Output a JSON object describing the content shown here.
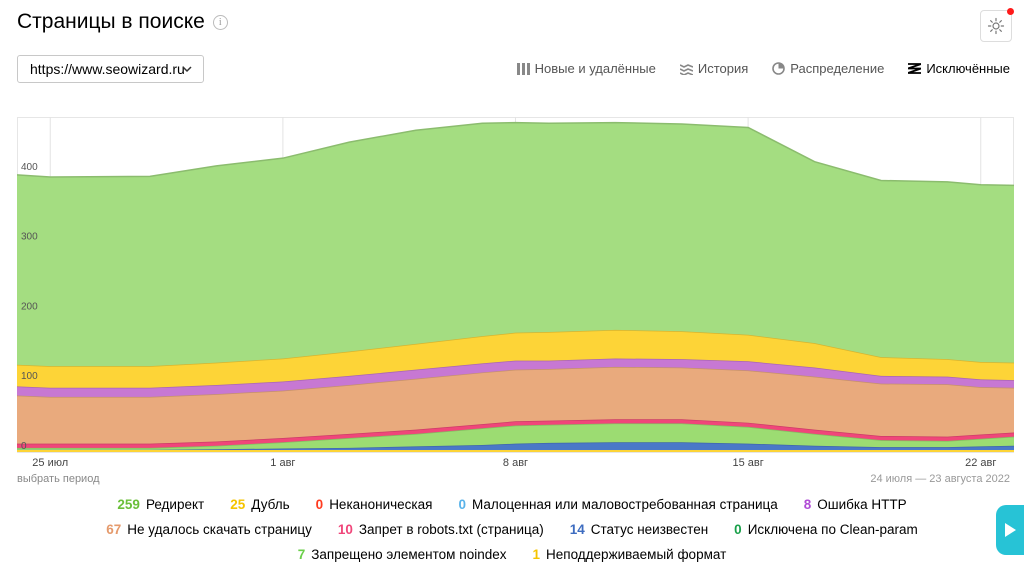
{
  "header": {
    "title": "Страницы в поиске",
    "info_icon": "info-icon",
    "settings_icon": "gear-icon"
  },
  "site_select": {
    "value": "https://www.seowizard.ru"
  },
  "tabs": [
    {
      "label": "Новые и удалённые",
      "icon": "bars-icon",
      "active": false
    },
    {
      "label": "История",
      "icon": "history-icon",
      "active": false
    },
    {
      "label": "Распределение",
      "icon": "pie-icon",
      "active": false
    },
    {
      "label": "Исключённые",
      "icon": "excluded-icon",
      "active": true
    }
  ],
  "period_link": "выбрать период",
  "date_range": "24 июля — 23 августа 2022",
  "chart_data": {
    "type": "area",
    "stacked": true,
    "x_ticks": [
      {
        "label": "25 июл",
        "day": 1
      },
      {
        "label": "1 авг",
        "day": 8
      },
      {
        "label": "8 авг",
        "day": 15
      },
      {
        "label": "15 авг",
        "day": 22
      },
      {
        "label": "22 авг",
        "day": 29
      }
    ],
    "x_range": [
      0,
      30
    ],
    "ylim": [
      0,
      480
    ],
    "y_ticks": [
      0,
      100,
      200,
      300,
      400
    ],
    "grid": true,
    "x": [
      0,
      1,
      4,
      6,
      8,
      10,
      12,
      14,
      15,
      16,
      18,
      20,
      22,
      24,
      26,
      28,
      29,
      30
    ],
    "series": [
      {
        "name": "Статус неизвестен",
        "color": "#4a78c8",
        "values": [
          3,
          3,
          3,
          4,
          5,
          6,
          8,
          10,
          12,
          13,
          14,
          14,
          12,
          9,
          7,
          7,
          8,
          9
        ]
      },
      {
        "name": "Запрещено элементом noindex",
        "color": "#9cdc72",
        "values": [
          3,
          3,
          3,
          5,
          9,
          14,
          18,
          24,
          26,
          26,
          27,
          27,
          24,
          17,
          10,
          9,
          11,
          13
        ]
      },
      {
        "name": "Запрет в robots.txt (страница)",
        "color": "#f0467a",
        "values": [
          6,
          6,
          6,
          6,
          6,
          6,
          6,
          6,
          6,
          6,
          6,
          6,
          6,
          6,
          6,
          6,
          6,
          6
        ]
      },
      {
        "name": "Не удалось скачать страницу",
        "color": "#e9aa7d",
        "values": [
          69,
          67,
          67,
          68,
          68,
          70,
          73,
          74,
          74,
          74,
          75,
          74,
          75,
          76,
          75,
          75,
          68,
          64
        ]
      },
      {
        "name": "Ошибка HTTP",
        "color": "#c778d3",
        "values": [
          13,
          13,
          13,
          13,
          13,
          13,
          13,
          13,
          13,
          12,
          12,
          12,
          13,
          13,
          11,
          11,
          11,
          11
        ]
      },
      {
        "name": "Дубль",
        "color": "#fdd437",
        "values": [
          31,
          31,
          31,
          32,
          33,
          35,
          37,
          39,
          40,
          41,
          41,
          40,
          38,
          35,
          27,
          25,
          25,
          25
        ]
      },
      {
        "name": "Редирект",
        "color": "#a4dd81",
        "values": [
          272,
          271,
          272,
          282,
          287,
          300,
          306,
          305,
          301,
          299,
          297,
          297,
          297,
          260,
          253,
          254,
          254,
          254
        ]
      }
    ]
  },
  "legend": [
    [
      {
        "count": "259",
        "label": "Редирект",
        "color": "#6bbf3a"
      },
      {
        "count": "25",
        "label": "Дубль",
        "color": "#f5c400"
      },
      {
        "count": "0",
        "label": "Неканоническая",
        "color": "#ff3b1f"
      },
      {
        "count": "0",
        "label": "Малоценная или маловостребованная страница",
        "color": "#59b3ea"
      },
      {
        "count": "8",
        "label": "Ошибка HTTP",
        "color": "#b04bd6"
      }
    ],
    [
      {
        "count": "67",
        "label": "Не удалось скачать страницу",
        "color": "#e59a6c"
      },
      {
        "count": "10",
        "label": "Запрет в robots.txt (страница)",
        "color": "#f0467a"
      },
      {
        "count": "14",
        "label": "Статус неизвестен",
        "color": "#3d6cc0"
      },
      {
        "count": "0",
        "label": "Исключена по Clean-param",
        "color": "#19a04a"
      }
    ],
    [
      {
        "count": "7",
        "label": "Запрещено элементом noindex",
        "color": "#6bcf4a"
      },
      {
        "count": "1",
        "label": "Неподдерживаемый формат",
        "color": "#f5c400"
      }
    ]
  ]
}
